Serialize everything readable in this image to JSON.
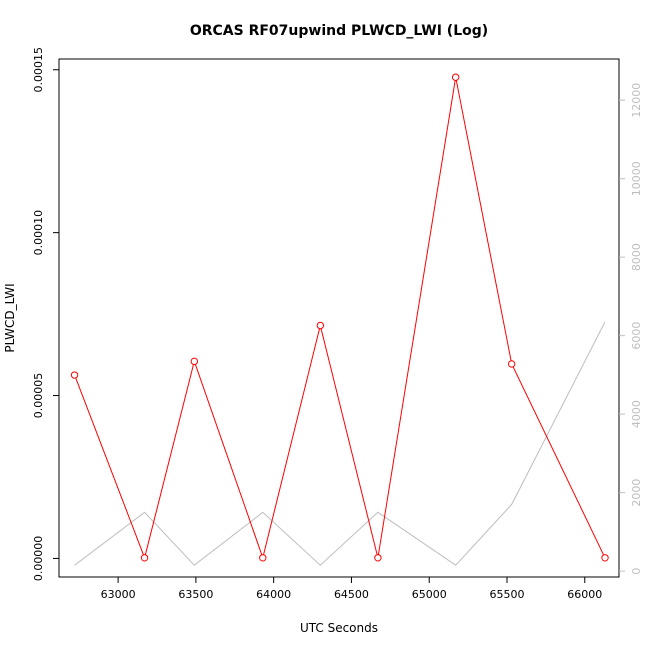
{
  "chart_data": {
    "type": "line",
    "title": "ORCAS RF07upwind PLWCD_LWI (Log)",
    "xlabel": "UTC Seconds",
    "ylabel": "PLWCD_LWI",
    "xlim": [
      62620,
      66220
    ],
    "ylim": [
      -5.7e-06,
      0.0001533
    ],
    "y2lim": [
      -150,
      13050
    ],
    "x_ticks": [
      63000,
      63500,
      64000,
      64500,
      65000,
      65500,
      66000
    ],
    "x_tick_labels": [
      "63000",
      "63500",
      "64000",
      "64500",
      "65000",
      "65500",
      "66000"
    ],
    "y_ticks": [
      0,
      5e-05,
      0.0001,
      0.00015
    ],
    "y_tick_labels": [
      "0.00000",
      "0.00005",
      "0.00010",
      "0.00015"
    ],
    "y2_ticks": [
      0,
      2000,
      4000,
      6000,
      8000,
      10000,
      12000
    ],
    "y2_tick_labels": [
      "0",
      "2000",
      "4000",
      "6000",
      "8000",
      "10000",
      "12000"
    ],
    "series": [
      {
        "axis": "left",
        "color": "#ff0000",
        "marker": "open-circle",
        "x": [
          62720,
          63170,
          63490,
          63930,
          64300,
          64670,
          65170,
          65530,
          66130
        ],
        "y": [
          5.63e-05,
          2e-07,
          6.05e-05,
          2e-07,
          7.15e-05,
          2e-07,
          0.0001477,
          5.97e-05,
          2e-07
        ]
      },
      {
        "axis": "right",
        "color": "#bebebe",
        "marker": "none",
        "x": [
          62720,
          63170,
          63490,
          63930,
          64300,
          64670,
          65170,
          65530,
          66130
        ],
        "y": [
          150,
          1500,
          150,
          1500,
          150,
          1500,
          150,
          1700,
          6350
        ]
      }
    ],
    "grid": false,
    "legend": "none"
  }
}
